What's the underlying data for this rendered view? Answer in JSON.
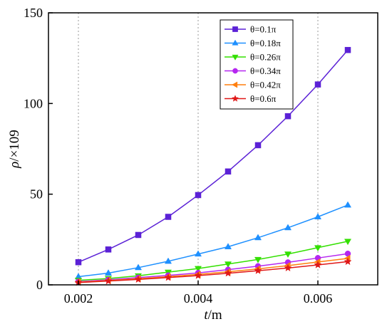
{
  "chart_data": {
    "type": "line",
    "xlabel_italic": "t",
    "xlabel_rest": "/m",
    "ylabel_italic": "ρ",
    "ylabel_rest": "/×10",
    "ylabel_exp": "9",
    "xlim": [
      0.0015,
      0.007
    ],
    "ylim": [
      0,
      150
    ],
    "xticks": [
      0.002,
      0.004,
      0.006
    ],
    "xtick_labels": [
      "0.002",
      "0.004",
      "0.006"
    ],
    "yticks": [
      0,
      50,
      100,
      150
    ],
    "ytick_labels": [
      "0",
      "50",
      "100",
      "150"
    ],
    "vertical_gridlines_at": [
      0.002,
      0.004,
      0.006
    ],
    "legend_position": "top-right",
    "x": [
      0.002,
      0.0025,
      0.003,
      0.0035,
      0.004,
      0.0045,
      0.005,
      0.0055,
      0.006,
      0.0065
    ],
    "series": [
      {
        "name": "θ=0.1π",
        "color": "#5b21d6",
        "marker": "square",
        "values": [
          12.5,
          19.5,
          27.5,
          37.5,
          49.5,
          62.5,
          77.0,
          93.0,
          110.5,
          129.5
        ]
      },
      {
        "name": "θ=0.18π",
        "color": "#1e90ff",
        "marker": "triangle-up",
        "values": [
          4.5,
          6.5,
          9.5,
          13.0,
          17.0,
          21.0,
          26.0,
          31.5,
          37.5,
          44.0
        ]
      },
      {
        "name": "θ=0.26π",
        "color": "#33e000",
        "marker": "triangle-down",
        "values": [
          2.5,
          3.5,
          5.0,
          7.0,
          9.0,
          11.5,
          14.0,
          17.0,
          20.5,
          24.0
        ]
      },
      {
        "name": "θ=0.34π",
        "color": "#b526f0",
        "marker": "circle",
        "values": [
          1.8,
          2.8,
          4.0,
          5.2,
          6.6,
          8.4,
          10.3,
          12.4,
          14.8,
          17.2
        ]
      },
      {
        "name": "θ=0.42π",
        "color": "#ff7f0e",
        "marker": "triangle-left",
        "values": [
          1.5,
          2.4,
          3.4,
          4.5,
          5.8,
          7.2,
          8.8,
          10.6,
          12.6,
          14.6
        ]
      },
      {
        "name": "θ=0.6π",
        "color": "#e01818",
        "marker": "star",
        "values": [
          1.3,
          2.1,
          3.0,
          4.0,
          5.1,
          6.4,
          7.8,
          9.3,
          11.0,
          12.8
        ]
      }
    ]
  }
}
